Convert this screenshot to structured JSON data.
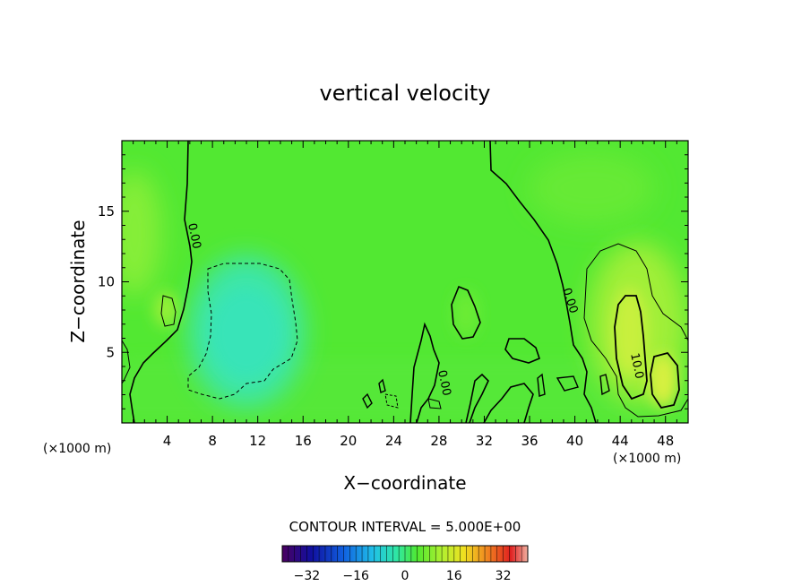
{
  "chart_data": {
    "type": "heatmap",
    "title": "vertical velocity",
    "xlabel": "X−coordinate",
    "ylabel": "Z−coordinate",
    "x_unit_left": "(×1000 m)",
    "x_unit_right": "(×1000 m)",
    "xlim": [
      0,
      50
    ],
    "ylim": [
      0,
      20
    ],
    "x_ticks": [
      4,
      8,
      12,
      16,
      20,
      24,
      28,
      32,
      36,
      40,
      44,
      48
    ],
    "y_ticks": [
      5,
      10,
      15
    ],
    "contour_interval_text": "CONTOUR INTERVAL = 5.000E+00",
    "contour_labels": [
      "0.00",
      "0.00",
      "0.00",
      "10.0"
    ],
    "colorbar": {
      "range": [
        -40,
        40
      ],
      "ticks": [
        -32,
        -16,
        0,
        16,
        32
      ],
      "tick_labels": [
        "−32",
        "−16",
        "0",
        "16",
        "32"
      ]
    },
    "field_features": [
      {
        "kind": "updraft",
        "x": 2.5,
        "z": 8,
        "value": 3
      },
      {
        "kind": "downdraft",
        "x": 11,
        "z": 6,
        "value": -5
      },
      {
        "kind": "updraft",
        "x": 44.5,
        "z": 7,
        "value": 12
      },
      {
        "kind": "updraft",
        "x": 47.5,
        "z": 3.3,
        "value": 12
      },
      {
        "kind": "updraft",
        "x": 46,
        "z": 8,
        "value": 6
      },
      {
        "kind": "updraft",
        "x": 30,
        "z": 8,
        "value": 1
      }
    ],
    "colors": {
      "background_field": "#52e832",
      "positive": "#c8f03c",
      "negative": "#40e8a0",
      "contour": "#000000"
    }
  }
}
